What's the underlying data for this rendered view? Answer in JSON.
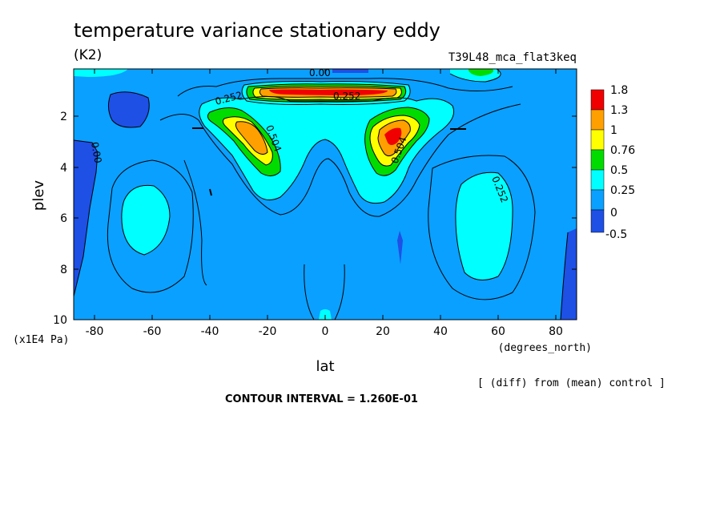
{
  "header": {
    "title": "temperature variance stationary eddy",
    "units": "(K2)",
    "run_name": "T39L48_mca_flat3keq"
  },
  "footer": {
    "comparison_note": "[ (diff) from (mean) control ]",
    "contour_interval": "CONTOUR INTERVAL = 1.260E-01"
  },
  "colors": {
    "level_0": "#1e50e6",
    "level_1": "#0aa0ff",
    "level_2": "#00ffff",
    "level_3": "#00dc00",
    "level_4": "#ffff00",
    "level_5": "#ffa000",
    "level_6": "#f00000"
  },
  "chart_data": {
    "type": "contour",
    "xlabel": "lat",
    "xunits": "(degrees_north)",
    "ylabel": "plev",
    "yunits": "(x1E4 Pa)",
    "xlim": [
      -87,
      87
    ],
    "ylim": [
      10,
      0.2
    ],
    "x_ticks": [
      "-80",
      "-60",
      "-40",
      "-20",
      "0",
      "20",
      "40",
      "60",
      "80"
    ],
    "y_ticks": [
      "2",
      "4",
      "6",
      "8",
      "10"
    ],
    "legend": {
      "placement": "right",
      "labels": [
        "1.8",
        "1.3",
        "1",
        "0.76",
        "0.5",
        "0.25",
        "0",
        "-0.5"
      ]
    },
    "contour_labels": [
      "0.00",
      "0.252",
      "0.504",
      "0.252",
      "0.00",
      "0.504",
      "0.252",
      "0.00"
    ]
  }
}
